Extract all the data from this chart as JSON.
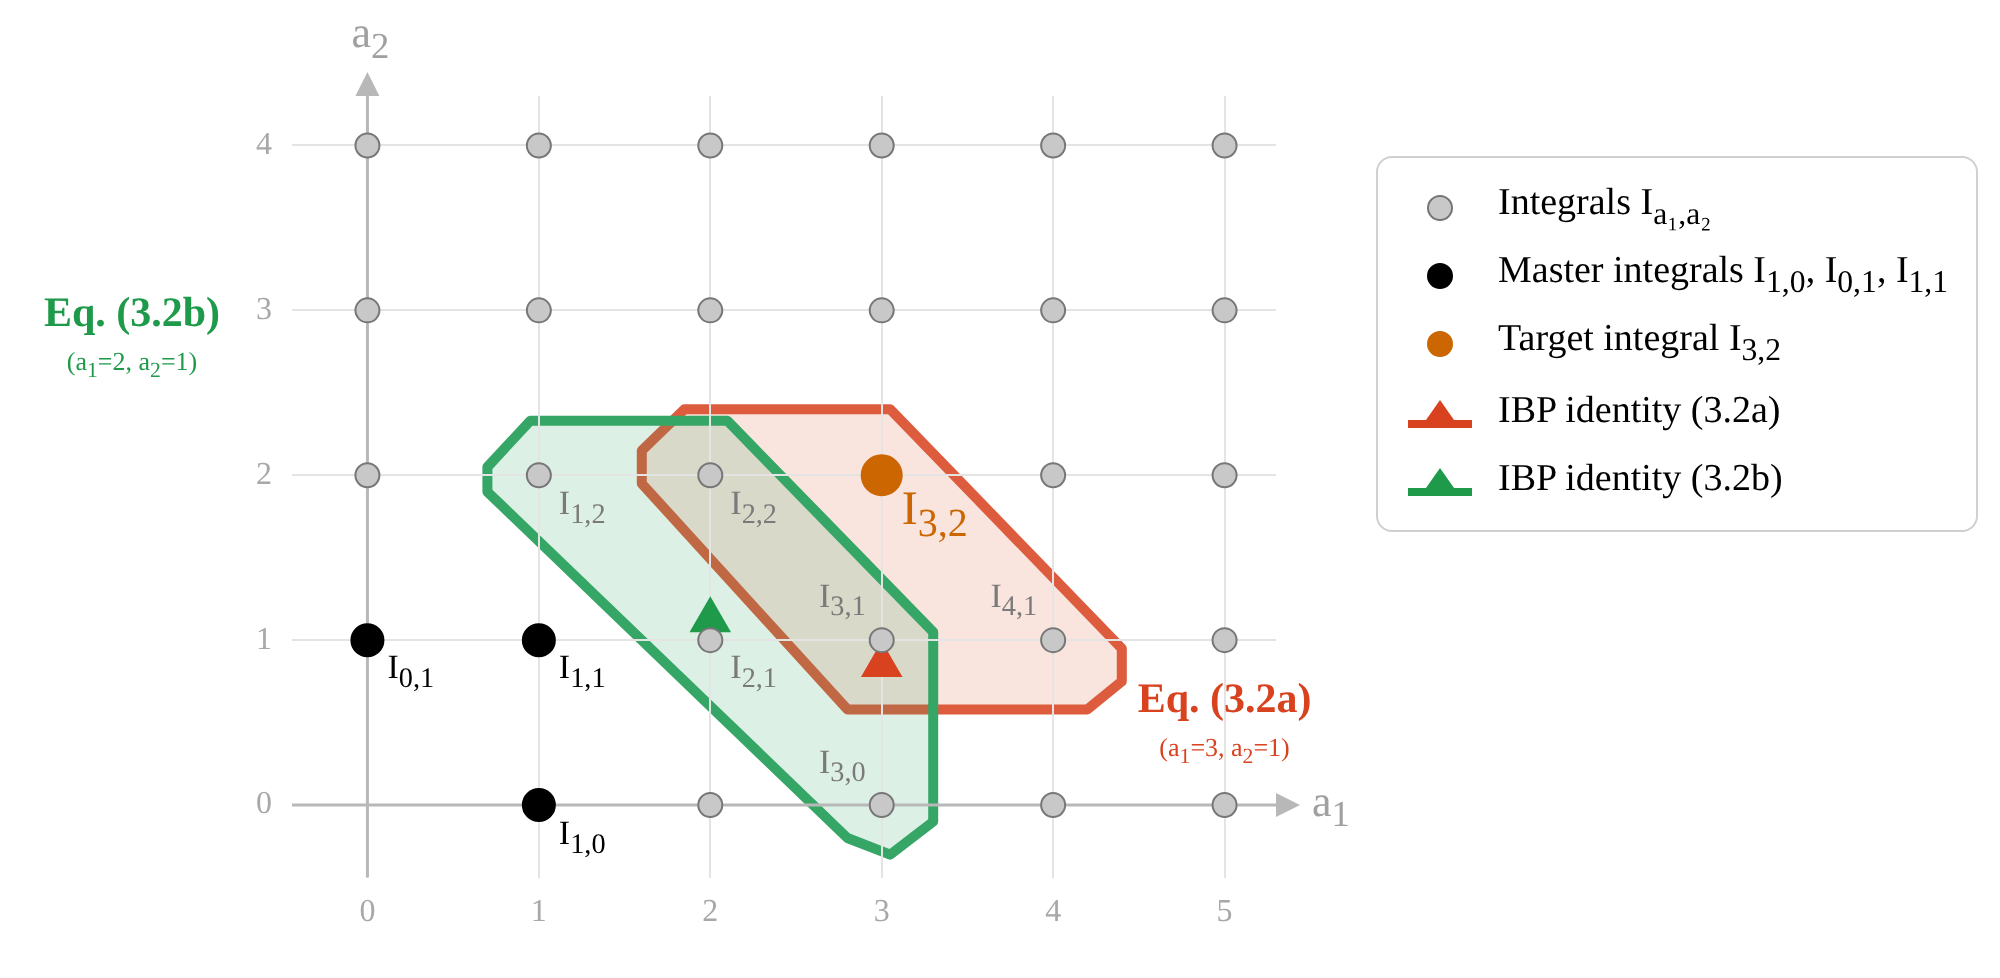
{
  "chart_data": {
    "type": "scatter",
    "xlabel": "a$_{1}$",
    "ylabel": "a$_{2}$",
    "xlim": [
      -0.44,
      5.3
    ],
    "ylim": [
      -0.44,
      4.3
    ],
    "xticks": [
      0,
      1,
      2,
      3,
      4,
      5
    ],
    "yticks": [
      0,
      1,
      2,
      3,
      4
    ],
    "grid": true,
    "legend": "right",
    "series": [
      {
        "name": "Integrals I$_{a₁,a₂}$",
        "color": "#c8c8c8",
        "marker": "circle",
        "x": [
          2,
          3,
          4,
          5,
          2,
          3,
          4,
          5,
          0,
          1,
          2,
          4,
          5,
          0,
          1,
          2,
          3,
          4,
          5,
          0,
          1,
          2,
          3,
          4,
          5
        ],
        "values": [
          0,
          0,
          0,
          0,
          1,
          1,
          1,
          1,
          2,
          2,
          2,
          2,
          2,
          3,
          3,
          3,
          3,
          3,
          3,
          4,
          4,
          4,
          4,
          4,
          4
        ]
      },
      {
        "name": "Master integrals I$_{1,0}$, I$_{0,1}$, I$_{1,1}$",
        "color": "#000000",
        "marker": "circle",
        "x": [
          1,
          0,
          1
        ],
        "values": [
          0,
          1,
          1
        ]
      },
      {
        "name": "Target integral I$_{3,2}$",
        "color": "#cc6600",
        "marker": "circle",
        "x": [
          3
        ],
        "values": [
          2
        ]
      },
      {
        "name": "IBP identity (3.2a)",
        "color": "#d9421e",
        "marker": "triangle",
        "x": [
          3
        ],
        "values": [
          0.85
        ]
      },
      {
        "name": "IBP identity (3.2b)",
        "color": "#1f9a4a",
        "marker": "triangle",
        "x": [
          2
        ],
        "values": [
          1.12
        ]
      }
    ],
    "annotations": [
      {
        "text": "I$_{1,2}$",
        "x": 1,
        "y": 2
      },
      {
        "text": "I$_{2,2}$",
        "x": 2,
        "y": 2
      },
      {
        "text": "I$_{3,2}$",
        "x": 3,
        "y": 2
      },
      {
        "text": "I$_{3,1}$",
        "x": 3,
        "y": 1
      },
      {
        "text": "I$_{4,1}$",
        "x": 4,
        "y": 1
      },
      {
        "text": "I$_{2,1}$",
        "x": 2,
        "y": 1
      },
      {
        "text": "I$_{3,0}$",
        "x": 3,
        "y": 0
      },
      {
        "text": "I$_{0,1}$",
        "x": 0,
        "y": 1
      },
      {
        "text": "I$_{1,1}$",
        "x": 1,
        "y": 1
      },
      {
        "text": "I$_{1,0}$",
        "x": 1,
        "y": 0
      },
      "Eq. (3.2b)",
      "(a$_{1}$=2, a$_{2}$=1)",
      "Eq. (3.2a)",
      "(a$_{1}$=3, a$_{2}$=1)"
    ]
  }
}
